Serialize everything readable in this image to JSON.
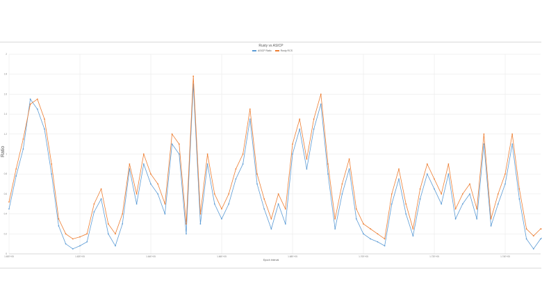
{
  "chart_data": {
    "type": "line",
    "title": "Rusty vs ASICP",
    "xlabel": "Epoch Interval",
    "ylabel": "Ratio",
    "ylim": [
      0,
      2
    ],
    "yticks": [
      0,
      0.2,
      0.4,
      0.6,
      0.8,
      1,
      1.2,
      1.4,
      1.6,
      1.8,
      2
    ],
    "xlim": [
      0,
      7.5
    ],
    "xticks": [
      0,
      1,
      2,
      3,
      4,
      5,
      6,
      7
    ],
    "xtick_labels": [
      "1.60E+05",
      "1.62E+05",
      "1.64E+05",
      "1.66E+05",
      "1.68E+05",
      "1.70E+05",
      "1.72E+05",
      "1.74E+05"
    ],
    "x_step": 0.1,
    "grid": true,
    "legend_position": "top",
    "series": [
      {
        "name": "ASICP Ratio",
        "color": "#5b9bd5",
        "values": [
          0.45,
          0.78,
          1.05,
          1.55,
          1.45,
          1.25,
          0.8,
          0.28,
          0.1,
          0.05,
          0.08,
          0.12,
          0.42,
          0.55,
          0.2,
          0.08,
          0.3,
          0.85,
          0.5,
          0.9,
          0.7,
          0.6,
          0.4,
          1.1,
          1.0,
          0.2,
          1.7,
          0.3,
          0.9,
          0.5,
          0.35,
          0.5,
          0.75,
          0.9,
          1.35,
          0.7,
          0.45,
          0.25,
          0.5,
          0.3,
          1.0,
          1.25,
          0.85,
          1.25,
          1.5,
          0.8,
          0.25,
          0.6,
          0.85,
          0.35,
          0.2,
          0.15,
          0.12,
          0.08,
          0.5,
          0.75,
          0.4,
          0.18,
          0.55,
          0.8,
          0.65,
          0.5,
          0.8,
          0.35,
          0.5,
          0.6,
          0.35,
          1.1,
          0.28,
          0.5,
          0.7,
          1.1,
          0.55,
          0.15,
          0.05,
          0.15,
          0.2
        ]
      },
      {
        "name": "Rusty RCS",
        "color": "#ed7d31",
        "values": [
          0.52,
          0.85,
          1.15,
          1.5,
          1.55,
          1.35,
          0.9,
          0.35,
          0.2,
          0.15,
          0.17,
          0.2,
          0.5,
          0.65,
          0.3,
          0.2,
          0.4,
          0.9,
          0.6,
          1.0,
          0.8,
          0.7,
          0.5,
          1.2,
          1.1,
          0.3,
          1.78,
          0.4,
          1.0,
          0.6,
          0.45,
          0.6,
          0.85,
          1.0,
          1.45,
          0.8,
          0.55,
          0.35,
          0.6,
          0.45,
          1.1,
          1.35,
          0.95,
          1.35,
          1.6,
          0.9,
          0.35,
          0.7,
          0.95,
          0.45,
          0.3,
          0.25,
          0.2,
          0.15,
          0.6,
          0.85,
          0.5,
          0.25,
          0.65,
          0.9,
          0.75,
          0.6,
          0.9,
          0.45,
          0.6,
          0.7,
          0.45,
          1.2,
          0.35,
          0.6,
          0.8,
          1.2,
          0.65,
          0.25,
          0.18,
          0.25,
          0.25
        ]
      }
    ]
  }
}
